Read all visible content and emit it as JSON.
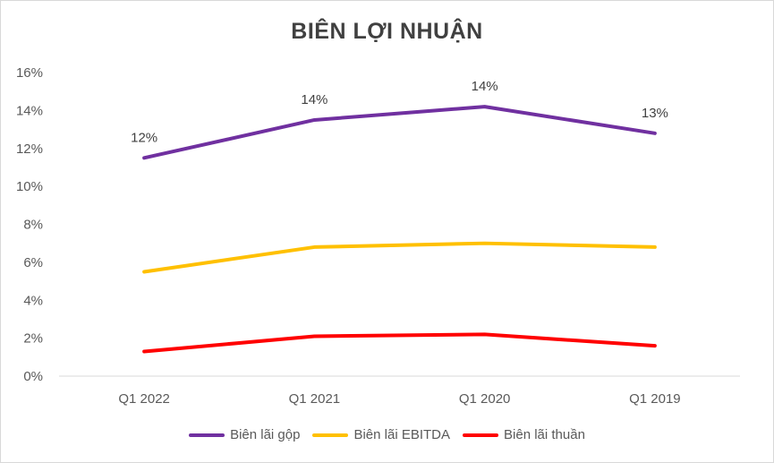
{
  "chart_data": {
    "type": "line",
    "title": "BIÊN LỢI NHUẬN",
    "categories": [
      "Q1 2022",
      "Q1 2021",
      "Q1 2020",
      "Q1 2019"
    ],
    "ylim": [
      0,
      0.16
    ],
    "yticks": [
      "0%",
      "2%",
      "4%",
      "6%",
      "8%",
      "10%",
      "12%",
      "14%",
      "16%"
    ],
    "grid": false,
    "legend_position": "bottom",
    "series": [
      {
        "name": "Biên lãi gộp",
        "color": "#7030a0",
        "values": [
          0.115,
          0.135,
          0.142,
          0.128
        ],
        "data_labels": [
          "12%",
          "14%",
          "14%",
          "13%"
        ]
      },
      {
        "name": "Biên lãi EBITDA",
        "color": "#ffc000",
        "values": [
          0.055,
          0.068,
          0.07,
          0.068
        ]
      },
      {
        "name": "Biên lãi thuần",
        "color": "#ff0000",
        "values": [
          0.013,
          0.021,
          0.022,
          0.016
        ]
      }
    ]
  },
  "legend": {
    "items": [
      "Biên lãi gộp",
      "Biên lãi EBITDA",
      "Biên lãi thuần"
    ]
  }
}
